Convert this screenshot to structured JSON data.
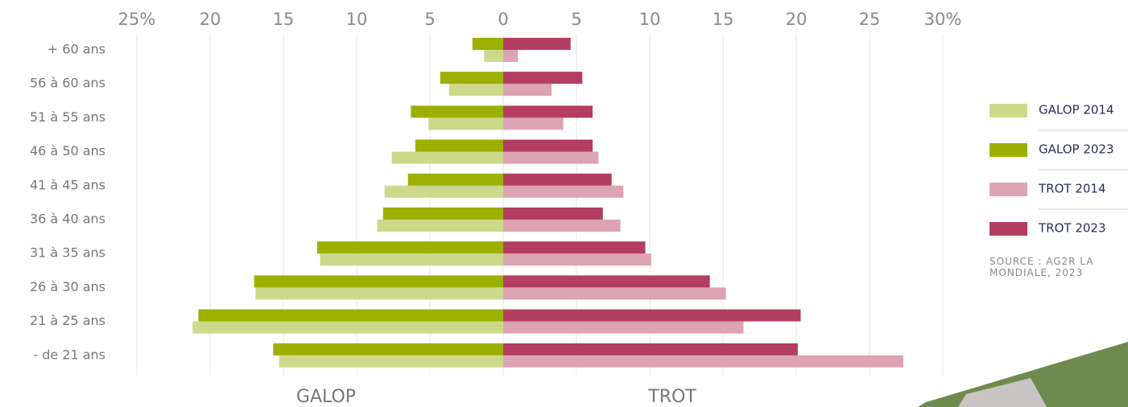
{
  "chart_data": {
    "type": "pyramid",
    "categories": [
      "+ 60 ans",
      "56 à 60 ans",
      "51 à 55 ans",
      "46 à 50 ans",
      "41 à 45 ans",
      "36 à 40 ans",
      "31 à 35 ans",
      "26 à 30 ans",
      "21 à 25 ans",
      "- de 21 ans"
    ],
    "series": [
      {
        "name": "GALOP 2014",
        "color": "#cdd98a",
        "values": [
          -1.3,
          -3.7,
          -5.1,
          -7.6,
          -8.1,
          -8.6,
          -12.5,
          -16.9,
          -21.2,
          -15.3
        ]
      },
      {
        "name": "GALOP 2023",
        "color": "#9cb000",
        "values": [
          -2.1,
          -4.3,
          -6.3,
          -6.0,
          -6.5,
          -8.2,
          -12.7,
          -17.0,
          -20.8,
          -15.7
        ]
      },
      {
        "name": "TROT 2014",
        "color": "#dca3b3",
        "values": [
          1.0,
          3.3,
          4.1,
          6.5,
          8.2,
          8.0,
          10.1,
          15.2,
          16.4,
          27.3
        ]
      },
      {
        "name": "TROT 2023",
        "color": "#b33e61",
        "values": [
          4.6,
          5.4,
          6.1,
          6.1,
          7.4,
          6.8,
          9.7,
          14.1,
          20.3,
          20.1
        ]
      }
    ],
    "xlim": [
      -25,
      30
    ],
    "xticks": [
      {
        "value": -25,
        "label": "25%"
      },
      {
        "value": -20,
        "label": "20"
      },
      {
        "value": -15,
        "label": "15"
      },
      {
        "value": -10,
        "label": "10"
      },
      {
        "value": -5,
        "label": "5"
      },
      0,
      5,
      10,
      15,
      20,
      25,
      {
        "value": 30,
        "label": "30%"
      }
    ],
    "grid": true,
    "side_labels": [
      "GALOP",
      "TROT"
    ],
    "source": "SOURCE : AG2R LA MONDIALE, 2023"
  }
}
